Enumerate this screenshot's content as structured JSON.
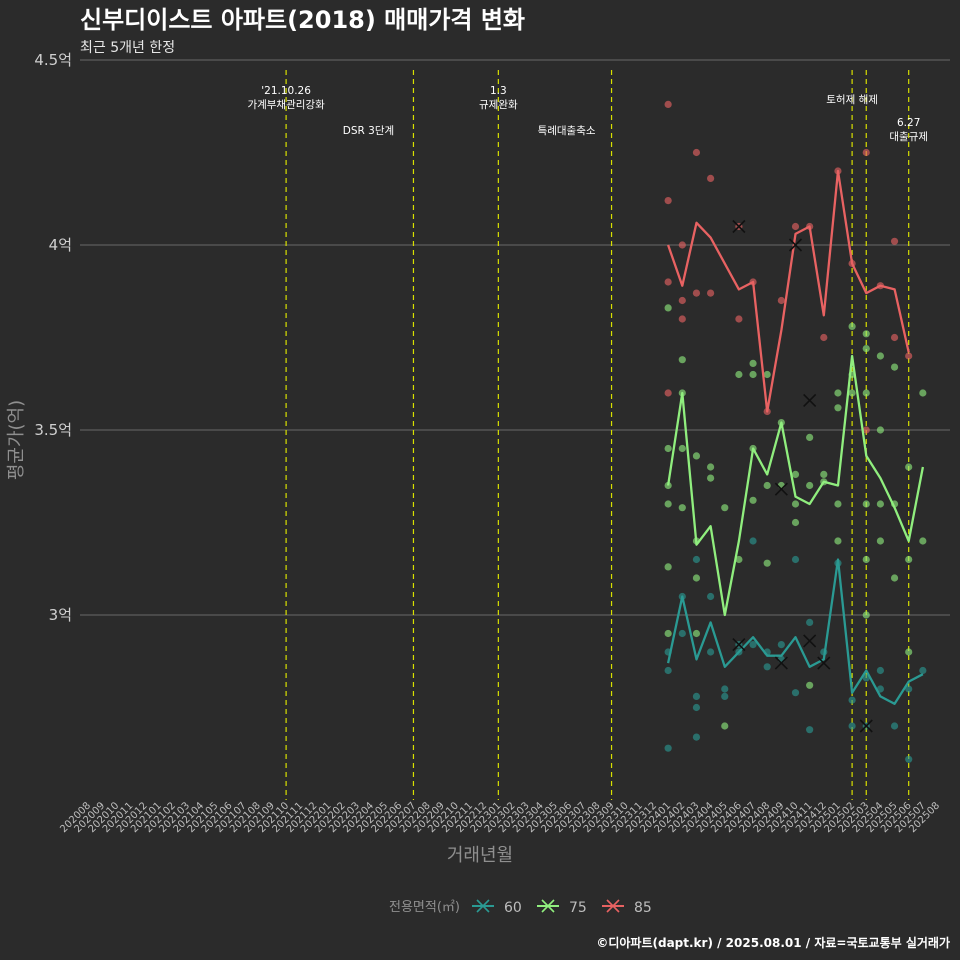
{
  "chart_data": {
    "type": "line",
    "title": "신부디이스트 아파트(2018) 매매가격 변화",
    "subtitle": "최근 5개년 한정",
    "xlabel": "거래년월",
    "ylabel": "평균가(억)",
    "ylim": [
      2.5,
      4.5
    ],
    "yticks": [
      {
        "value": 3.0,
        "label": "3억"
      },
      {
        "value": 3.5,
        "label": "3.5억"
      },
      {
        "value": 4.0,
        "label": "4억"
      },
      {
        "value": 4.5,
        "label": "4.5억"
      }
    ],
    "x_categories": [
      "202008",
      "202009",
      "202010",
      "202011",
      "202012",
      "202101",
      "202102",
      "202103",
      "202104",
      "202105",
      "202106",
      "202107",
      "202108",
      "202109",
      "202110",
      "202111",
      "202112",
      "202201",
      "202202",
      "202203",
      "202204",
      "202205",
      "202206",
      "202207",
      "202208",
      "202209",
      "202210",
      "202211",
      "202212",
      "202301",
      "202302",
      "202303",
      "202304",
      "202305",
      "202306",
      "202307",
      "202308",
      "202309",
      "202310",
      "202311",
      "202312",
      "202401",
      "202402",
      "202403",
      "202404",
      "202405",
      "202406",
      "202407",
      "202408",
      "202409",
      "202410",
      "202411",
      "202412",
      "202501",
      "202502",
      "202503",
      "202504",
      "202505",
      "202506",
      "202507",
      "202508"
    ],
    "vlines": [
      {
        "x": "202110",
        "label": "'21.10.26\n가계부채관리강화",
        "row": 1
      },
      {
        "x": "202207",
        "label": "DSR 3단계",
        "row": 3
      },
      {
        "x": "202301",
        "label": "1.3\n규제완화",
        "row": 1
      },
      {
        "x": "202309",
        "label": "특례대출축소",
        "row": 3
      },
      {
        "x": "202502",
        "label": "토허제 해제",
        "row": 2
      },
      {
        "x": "202503",
        "label": "",
        "row": 0
      },
      {
        "x": "202506",
        "label": "6.27\n대출규제",
        "row": 4
      }
    ],
    "legend_title": "전용면적(㎡)",
    "series": [
      {
        "name": "60",
        "color": "#2a9a93",
        "x": [
          "202401",
          "202402",
          "202403",
          "202404",
          "202405",
          "202406",
          "202407",
          "202408",
          "202409",
          "202410",
          "202411",
          "202412",
          "202501",
          "202502",
          "202503",
          "202504",
          "202505",
          "202506",
          "202507"
        ],
        "y": [
          2.87,
          3.05,
          2.88,
          2.98,
          2.86,
          2.9,
          2.94,
          2.89,
          2.89,
          2.94,
          2.86,
          2.88,
          3.15,
          2.79,
          2.85,
          2.78,
          2.76,
          2.82,
          2.84
        ],
        "points": [
          [
            "202401",
            2.64
          ],
          [
            "202401",
            2.85
          ],
          [
            "202401",
            2.9
          ],
          [
            "202402",
            3.05
          ],
          [
            "202402",
            2.95
          ],
          [
            "202403",
            3.15
          ],
          [
            "202403",
            2.78
          ],
          [
            "202403",
            2.75
          ],
          [
            "202403",
            2.67
          ],
          [
            "202404",
            3.05
          ],
          [
            "202404",
            2.9
          ],
          [
            "202405",
            2.8
          ],
          [
            "202405",
            2.78
          ],
          [
            "202406",
            2.92
          ],
          [
            "202406",
            2.9
          ],
          [
            "202407",
            3.2
          ],
          [
            "202407",
            2.92
          ],
          [
            "202408",
            2.86
          ],
          [
            "202408",
            2.9
          ],
          [
            "202409",
            2.92
          ],
          [
            "202409",
            2.88
          ],
          [
            "202410",
            3.15
          ],
          [
            "202410",
            2.79
          ],
          [
            "202411",
            2.98
          ],
          [
            "202411",
            2.69
          ],
          [
            "202412",
            2.9
          ],
          [
            "202501",
            3.14
          ],
          [
            "202502",
            2.77
          ],
          [
            "202502",
            2.7
          ],
          [
            "202503",
            2.83
          ],
          [
            "202503",
            2.7
          ],
          [
            "202504",
            2.85
          ],
          [
            "202504",
            2.8
          ],
          [
            "202505",
            2.7
          ],
          [
            "202506",
            2.61
          ],
          [
            "202506",
            2.8
          ],
          [
            "202507",
            2.85
          ]
        ],
        "crosses": [
          [
            "202406",
            2.92
          ],
          [
            "202409",
            2.87
          ],
          [
            "202411",
            2.93
          ],
          [
            "202412",
            2.87
          ],
          [
            "202503",
            2.7
          ]
        ]
      },
      {
        "name": "75",
        "color": "#90ee7e",
        "x": [
          "202401",
          "202402",
          "202403",
          "202404",
          "202405",
          "202406",
          "202407",
          "202408",
          "202409",
          "202410",
          "202411",
          "202412",
          "202501",
          "202502",
          "202503",
          "202504",
          "202505",
          "202506",
          "202507"
        ],
        "y": [
          3.35,
          3.6,
          3.19,
          3.24,
          3.0,
          3.2,
          3.45,
          3.38,
          3.52,
          3.32,
          3.3,
          3.36,
          3.35,
          3.7,
          3.43,
          3.37,
          3.29,
          3.2,
          3.4
        ],
        "points": [
          [
            "202401",
            3.83
          ],
          [
            "202401",
            3.45
          ],
          [
            "202401",
            3.35
          ],
          [
            "202401",
            3.3
          ],
          [
            "202401",
            3.13
          ],
          [
            "202401",
            2.95
          ],
          [
            "202402",
            3.69
          ],
          [
            "202402",
            3.6
          ],
          [
            "202402",
            3.45
          ],
          [
            "202402",
            3.29
          ],
          [
            "202403",
            3.43
          ],
          [
            "202403",
            3.2
          ],
          [
            "202403",
            3.1
          ],
          [
            "202403",
            2.95
          ],
          [
            "202404",
            3.4
          ],
          [
            "202404",
            3.37
          ],
          [
            "202405",
            3.29
          ],
          [
            "202405",
            2.7
          ],
          [
            "202406",
            3.65
          ],
          [
            "202406",
            3.15
          ],
          [
            "202407",
            3.68
          ],
          [
            "202407",
            3.65
          ],
          [
            "202407",
            3.45
          ],
          [
            "202407",
            3.31
          ],
          [
            "202408",
            3.65
          ],
          [
            "202408",
            3.35
          ],
          [
            "202408",
            3.14
          ],
          [
            "202409",
            3.52
          ],
          [
            "202409",
            3.35
          ],
          [
            "202410",
            3.38
          ],
          [
            "202410",
            3.3
          ],
          [
            "202410",
            3.25
          ],
          [
            "202411",
            3.48
          ],
          [
            "202411",
            3.35
          ],
          [
            "202411",
            2.81
          ],
          [
            "202412",
            3.38
          ],
          [
            "202412",
            3.36
          ],
          [
            "202501",
            3.6
          ],
          [
            "202501",
            3.56
          ],
          [
            "202501",
            3.3
          ],
          [
            "202501",
            3.2
          ],
          [
            "202502",
            3.78
          ],
          [
            "202502",
            3.65
          ],
          [
            "202502",
            3.6
          ],
          [
            "202503",
            3.76
          ],
          [
            "202503",
            3.72
          ],
          [
            "202503",
            3.6
          ],
          [
            "202503",
            3.3
          ],
          [
            "202503",
            3.15
          ],
          [
            "202503",
            3.0
          ],
          [
            "202504",
            3.7
          ],
          [
            "202504",
            3.5
          ],
          [
            "202504",
            3.3
          ],
          [
            "202504",
            3.2
          ],
          [
            "202505",
            3.67
          ],
          [
            "202505",
            3.3
          ],
          [
            "202505",
            3.1
          ],
          [
            "202506",
            3.4
          ],
          [
            "202506",
            3.15
          ],
          [
            "202506",
            2.9
          ],
          [
            "202507",
            3.6
          ],
          [
            "202507",
            3.2
          ]
        ],
        "crosses": [
          [
            "202409",
            3.34
          ],
          [
            "202411",
            3.58
          ]
        ]
      },
      {
        "name": "85",
        "color": "#e86262",
        "x": [
          "202401",
          "202402",
          "202403",
          "202404",
          "202406",
          "202407",
          "202408",
          "202409",
          "202410",
          "202411",
          "202412",
          "202501",
          "202502",
          "202503",
          "202504",
          "202505",
          "202506"
        ],
        "y": [
          4.0,
          3.89,
          4.06,
          4.02,
          3.88,
          3.9,
          3.55,
          3.77,
          4.03,
          4.05,
          3.81,
          4.2,
          3.95,
          3.87,
          3.89,
          3.88,
          3.71
        ],
        "points": [
          [
            "202401",
            4.38
          ],
          [
            "202401",
            4.12
          ],
          [
            "202401",
            3.9
          ],
          [
            "202401",
            3.6
          ],
          [
            "202402",
            4.0
          ],
          [
            "202402",
            3.85
          ],
          [
            "202402",
            3.8
          ],
          [
            "202403",
            4.25
          ],
          [
            "202403",
            3.87
          ],
          [
            "202404",
            4.18
          ],
          [
            "202404",
            3.87
          ],
          [
            "202406",
            4.05
          ],
          [
            "202406",
            3.8
          ],
          [
            "202407",
            3.9
          ],
          [
            "202408",
            3.55
          ],
          [
            "202409",
            3.85
          ],
          [
            "202410",
            4.05
          ],
          [
            "202411",
            4.05
          ],
          [
            "202412",
            3.75
          ],
          [
            "202501",
            4.2
          ],
          [
            "202502",
            3.95
          ],
          [
            "202503",
            4.25
          ],
          [
            "202503",
            3.5
          ],
          [
            "202504",
            3.89
          ],
          [
            "202505",
            4.01
          ],
          [
            "202505",
            3.75
          ],
          [
            "202506",
            3.7
          ]
        ],
        "crosses": [
          [
            "202406",
            4.05
          ],
          [
            "202410",
            4.0
          ]
        ]
      }
    ],
    "caption": "©디아파트(dapt.kr) / 2025.08.01 / 자료=국토교통부 실거래가"
  }
}
